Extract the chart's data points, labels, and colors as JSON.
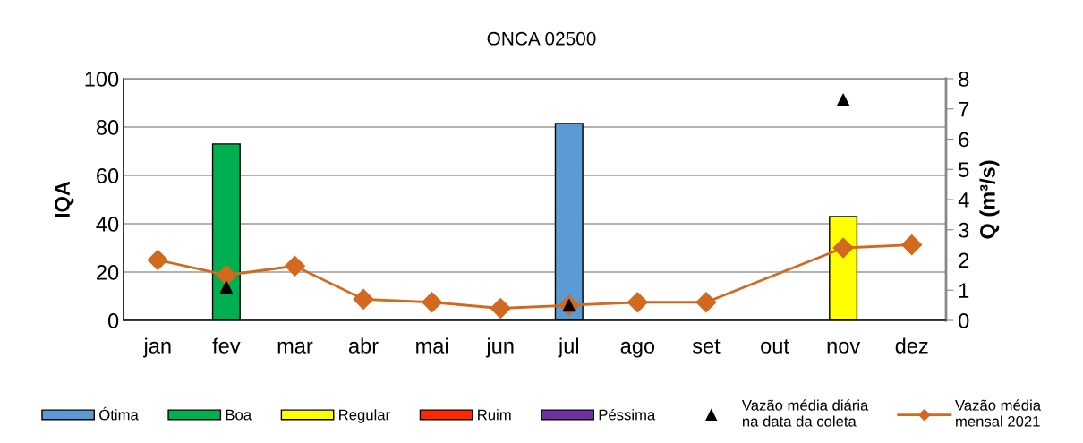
{
  "chart_data": {
    "type": "bar",
    "title": "ONCA 02500",
    "categories": [
      "jan",
      "fev",
      "mar",
      "abr",
      "mai",
      "jun",
      "jul",
      "ago",
      "set",
      "out",
      "nov",
      "dez"
    ],
    "series": [
      {
        "name": "Ótima",
        "color": "#5b9bd5",
        "values": [
          null,
          null,
          null,
          null,
          null,
          null,
          81.5,
          null,
          null,
          null,
          null,
          null
        ]
      },
      {
        "name": "Boa",
        "color": "#00b050",
        "values": [
          null,
          73,
          null,
          null,
          null,
          null,
          null,
          null,
          null,
          null,
          null,
          null
        ]
      },
      {
        "name": "Regular",
        "color": "#ffff00",
        "values": [
          null,
          null,
          null,
          null,
          null,
          null,
          null,
          null,
          null,
          null,
          43,
          null
        ]
      },
      {
        "name": "Ruim",
        "color": "#ff2600",
        "values": [
          null,
          null,
          null,
          null,
          null,
          null,
          null,
          null,
          null,
          null,
          null,
          null
        ]
      },
      {
        "name": "Péssima",
        "color": "#7030a0",
        "values": [
          null,
          null,
          null,
          null,
          null,
          null,
          null,
          null,
          null,
          null,
          null,
          null
        ]
      },
      {
        "name": "Vazão média diária\nna data da coleta",
        "type": "scatter",
        "axis": "y2",
        "marker": "triangle",
        "color": "#000000",
        "values": [
          null,
          1.1,
          null,
          null,
          null,
          null,
          0.5,
          null,
          null,
          null,
          7.3,
          null
        ]
      },
      {
        "name": "Vazão média\nmensal 2021",
        "type": "line",
        "axis": "y2",
        "marker": "diamond",
        "color": "#d2691e",
        "values": [
          2.0,
          1.5,
          1.8,
          0.7,
          0.6,
          0.4,
          0.5,
          0.6,
          0.6,
          null,
          2.4,
          2.5
        ]
      }
    ],
    "ylabel": "IQA",
    "y2label": "Q (m³/s)",
    "ylim": [
      0,
      100
    ],
    "yticks": [
      0,
      20,
      40,
      60,
      80,
      100
    ],
    "y2lim": [
      0,
      8
    ],
    "y2ticks": [
      0,
      1,
      2,
      3,
      4,
      5,
      6,
      7,
      8
    ],
    "grid": "y",
    "legend": "bottom"
  }
}
